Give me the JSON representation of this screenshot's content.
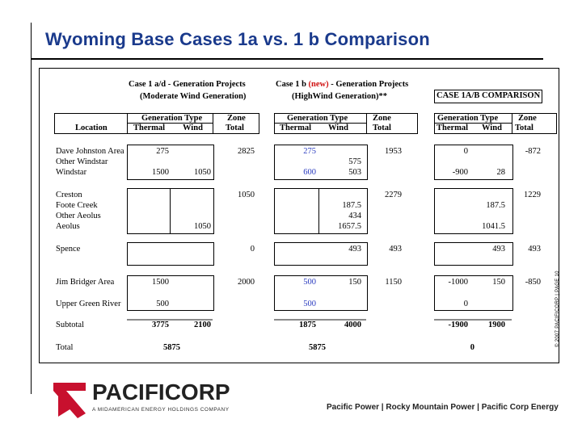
{
  "slide": {
    "title": "Wyoming Base Cases 1a vs. 1 b Comparison"
  },
  "headers": {
    "case1a_line1": "Case 1 a/d - Generation Projects",
    "case1a_line2": "(Moderate Wind Generation)",
    "case1b_prefix": "Case 1 b ",
    "case1b_new": "(new)",
    "case1b_suffix": " - Generation Projects",
    "case1b_line2": "(HighWind Generation)**",
    "comparison": "CASE 1A/B COMPARISON",
    "gen_type": "Generation Type",
    "zone": "Zone",
    "location": "Location",
    "thermal": "Thermal",
    "wind": "Wind",
    "total": "Total"
  },
  "rows": {
    "dave": {
      "label": "Dave Johnston Area",
      "a_thermal": "275",
      "a_total": "2825",
      "b_thermal": "275",
      "b_total": "1953",
      "c_thermal": "0",
      "c_total": "-872"
    },
    "other_windstar": {
      "label": "Other Windstar",
      "b_wind": "575"
    },
    "windstar": {
      "label": "Windstar",
      "a_thermal": "1500",
      "a_wind": "1050",
      "b_thermal": "600",
      "b_wind": "503",
      "c_thermal": "-900",
      "c_wind": "28"
    },
    "creston": {
      "label": "Creston",
      "a_total": "1050",
      "b_total": "2279",
      "c_total": "1229"
    },
    "foote": {
      "label": "Foote Creek",
      "b_wind": "187.5",
      "c_wind": "187.5"
    },
    "other_aeolus": {
      "label": "Other Aeolus",
      "b_wind": "434"
    },
    "aeolus": {
      "label": "Aeolus",
      "a_wind": "1050",
      "b_wind": "1657.5",
      "c_wind": "1041.5"
    },
    "spence": {
      "label": "Spence",
      "a_total": "0",
      "b_wind": "493",
      "b_total": "493",
      "c_wind": "493",
      "c_total": "493"
    },
    "jim": {
      "label": "Jim Bridger Area",
      "a_thermal": "1500",
      "a_total": "2000",
      "b_thermal": "500",
      "b_wind": "150",
      "b_total": "1150",
      "c_thermal": "-1000",
      "c_wind": "150",
      "c_total": "-850"
    },
    "ugr": {
      "label": "Upper Green River",
      "a_thermal": "500",
      "b_thermal": "500",
      "c_thermal": "0"
    },
    "subtotal": {
      "label": "Subtotal",
      "a_thermal": "3775",
      "a_wind": "2100",
      "b_thermal": "1875",
      "b_wind": "4000",
      "c_thermal": "-1900",
      "c_wind": "1900"
    },
    "total": {
      "label": "Total",
      "a": "5875",
      "b": "5875",
      "c": "0"
    }
  },
  "footer": {
    "copyright": "© 2007 PACIFICORP | PAGE 10",
    "logo_word": "PACIFICORP",
    "logo_sub": "A MIDAMERICAN ENERGY HOLDINGS COMPANY",
    "brands": "Pacific Power | Rocky Mountain Power | Pacific Corp Energy"
  },
  "colors": {
    "title": "#1a3a8c",
    "case1b_values": "#2a3bbf",
    "new_label": "#d01010",
    "logo_red": "#c8102e"
  }
}
